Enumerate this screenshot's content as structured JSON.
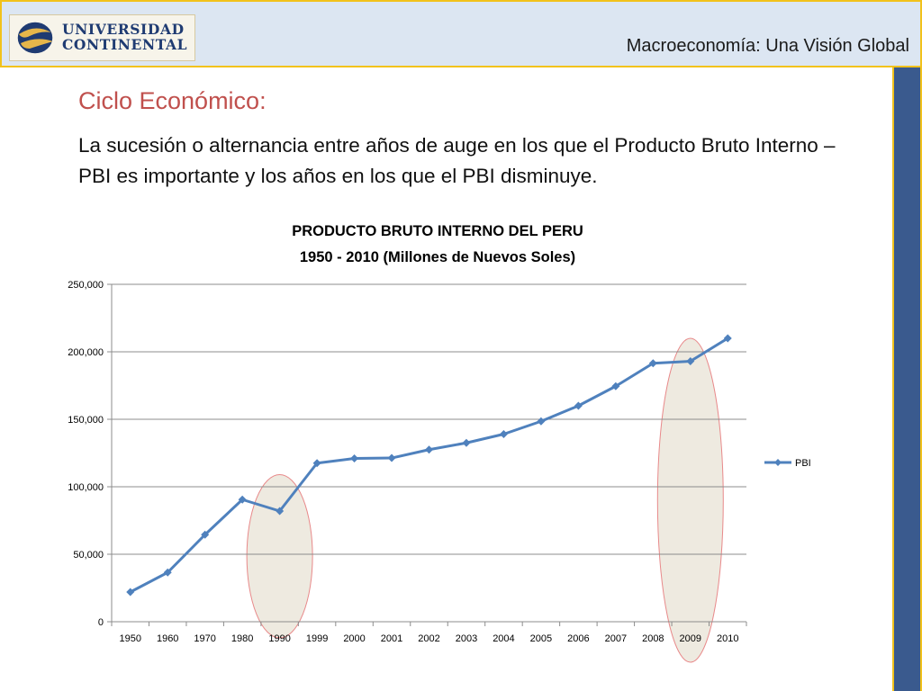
{
  "header": {
    "logo_line1": "UNIVERSIDAD",
    "logo_line2": "CONTINENTAL",
    "title": "Macroeconomía:  Una Visión Global",
    "colors": {
      "header_bg": "#dce6f2",
      "header_border": "#f2c21b",
      "side_bar": "#3a5a8e"
    }
  },
  "slide": {
    "heading": "Ciclo Económico:",
    "body": "La sucesión o alternancia entre años de auge en los que el Producto Bruto Interno – PBI es importante y los años en los que el PBI disminuye."
  },
  "chart_data": {
    "type": "line",
    "title_line1": "PRODUCTO BRUTO INTERNO DEL PERU",
    "title_line2": "1950 - 2010 (Millones de Nuevos Soles)",
    "categories": [
      "1950",
      "1960",
      "1970",
      "1980",
      "1990",
      "1999",
      "2000",
      "2001",
      "2002",
      "2003",
      "2004",
      "2005",
      "2006",
      "2007",
      "2008",
      "2009",
      "2010"
    ],
    "series": [
      {
        "name": "PBI",
        "color": "#4f81bd",
        "values": [
          22000,
          36500,
          64500,
          90500,
          82000,
          117500,
          121000,
          121300,
          127500,
          132500,
          139000,
          148500,
          160000,
          174500,
          191500,
          193000,
          210000
        ]
      }
    ],
    "yticks": [
      "0",
      "50,000",
      "100,000",
      "150,000",
      "200,000",
      "250,000"
    ],
    "ylim": [
      0,
      250000
    ],
    "grid": true,
    "legend_position": "right",
    "highlight_color": "#eeeae0",
    "highlight_stroke": "#e8898a",
    "highlights": [
      {
        "category": "1990",
        "y_from": -12000,
        "y_to": 109000
      },
      {
        "category": "2009",
        "y_from": -30000,
        "y_to": 210000
      }
    ]
  }
}
